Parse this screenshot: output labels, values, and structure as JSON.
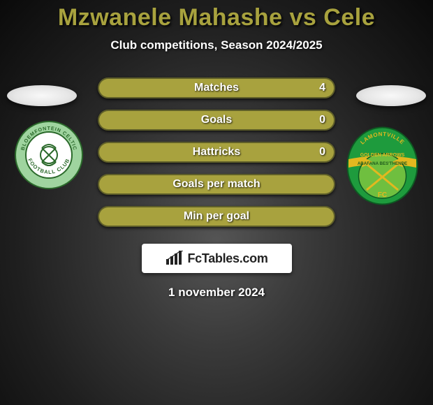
{
  "title": {
    "player_a": "Mzwanele Mahashe",
    "vs": "vs",
    "player_b": "Cele",
    "color": "#a8a23e"
  },
  "subtitle": "Club competitions, Season 2024/2025",
  "date_text": "1 november 2024",
  "colors": {
    "bar_fill": "#a8a23e",
    "bar_outline": "#5f5f29",
    "text": "#ffffff"
  },
  "bars": [
    {
      "label": "Matches",
      "left": "",
      "right": "4",
      "left_pct": 0,
      "right_pct": 100
    },
    {
      "label": "Goals",
      "left": "",
      "right": "0",
      "left_pct": 0,
      "right_pct": 100
    },
    {
      "label": "Hattricks",
      "left": "",
      "right": "0",
      "left_pct": 0,
      "right_pct": 100
    },
    {
      "label": "Goals per match",
      "left": "",
      "right": "",
      "left_pct": 0,
      "right_pct": 100
    },
    {
      "label": "Min per goal",
      "left": "",
      "right": "",
      "left_pct": 0,
      "right_pct": 100
    }
  ],
  "fctables_brand": "FcTables.com",
  "clubs": {
    "left": {
      "name": "Bloemfontein Celtic Football Club",
      "ring_color": "#9fd49f",
      "inner_color": "#2b6a2b",
      "text_upper": "BLOEMFONTEIN CELTIC",
      "text_lower": "FOOTBALL CLUB"
    },
    "right": {
      "name": "Lamontville Golden Arrows FC",
      "ring_color": "#1e9b3d",
      "band_color": "#e3b81f",
      "inner_color": "#6fbf3f",
      "text_upper": "LAMONTVILLE",
      "text_mid": "GOLDEN ARROWS",
      "text_band": "ABAFANA BES'THENDE",
      "text_lower": "FC"
    }
  }
}
